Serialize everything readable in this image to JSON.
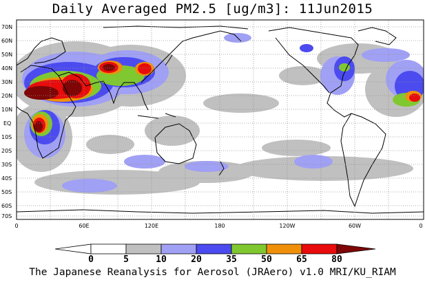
{
  "title": "Daily Averaged PM2.5 [ug/m3]: 11Jun2015",
  "credit": "The Japanese Reanalysis for Aerosol (JRAero) v1.0 MRI/KU_RIAM",
  "latitude_labels": [
    "70N",
    "60N",
    "50N",
    "40N",
    "30N",
    "20N",
    "10N",
    "EQ",
    "10S",
    "20S",
    "30S",
    "40S",
    "50S",
    "60S",
    "70S"
  ],
  "longitude_labels": [
    "0",
    "60E",
    "120E",
    "180",
    "120W",
    "60W",
    "0"
  ],
  "colorbar": {
    "labels": [
      "0",
      "5",
      "10",
      "20",
      "35",
      "50",
      "65",
      "80"
    ],
    "colors": [
      "#ffffff",
      "#ffffff",
      "#c0c0c0",
      "#a0a0f5",
      "#4b4bf0",
      "#80c830",
      "#f0900a",
      "#e80c0c",
      "#7e0606"
    ]
  }
}
